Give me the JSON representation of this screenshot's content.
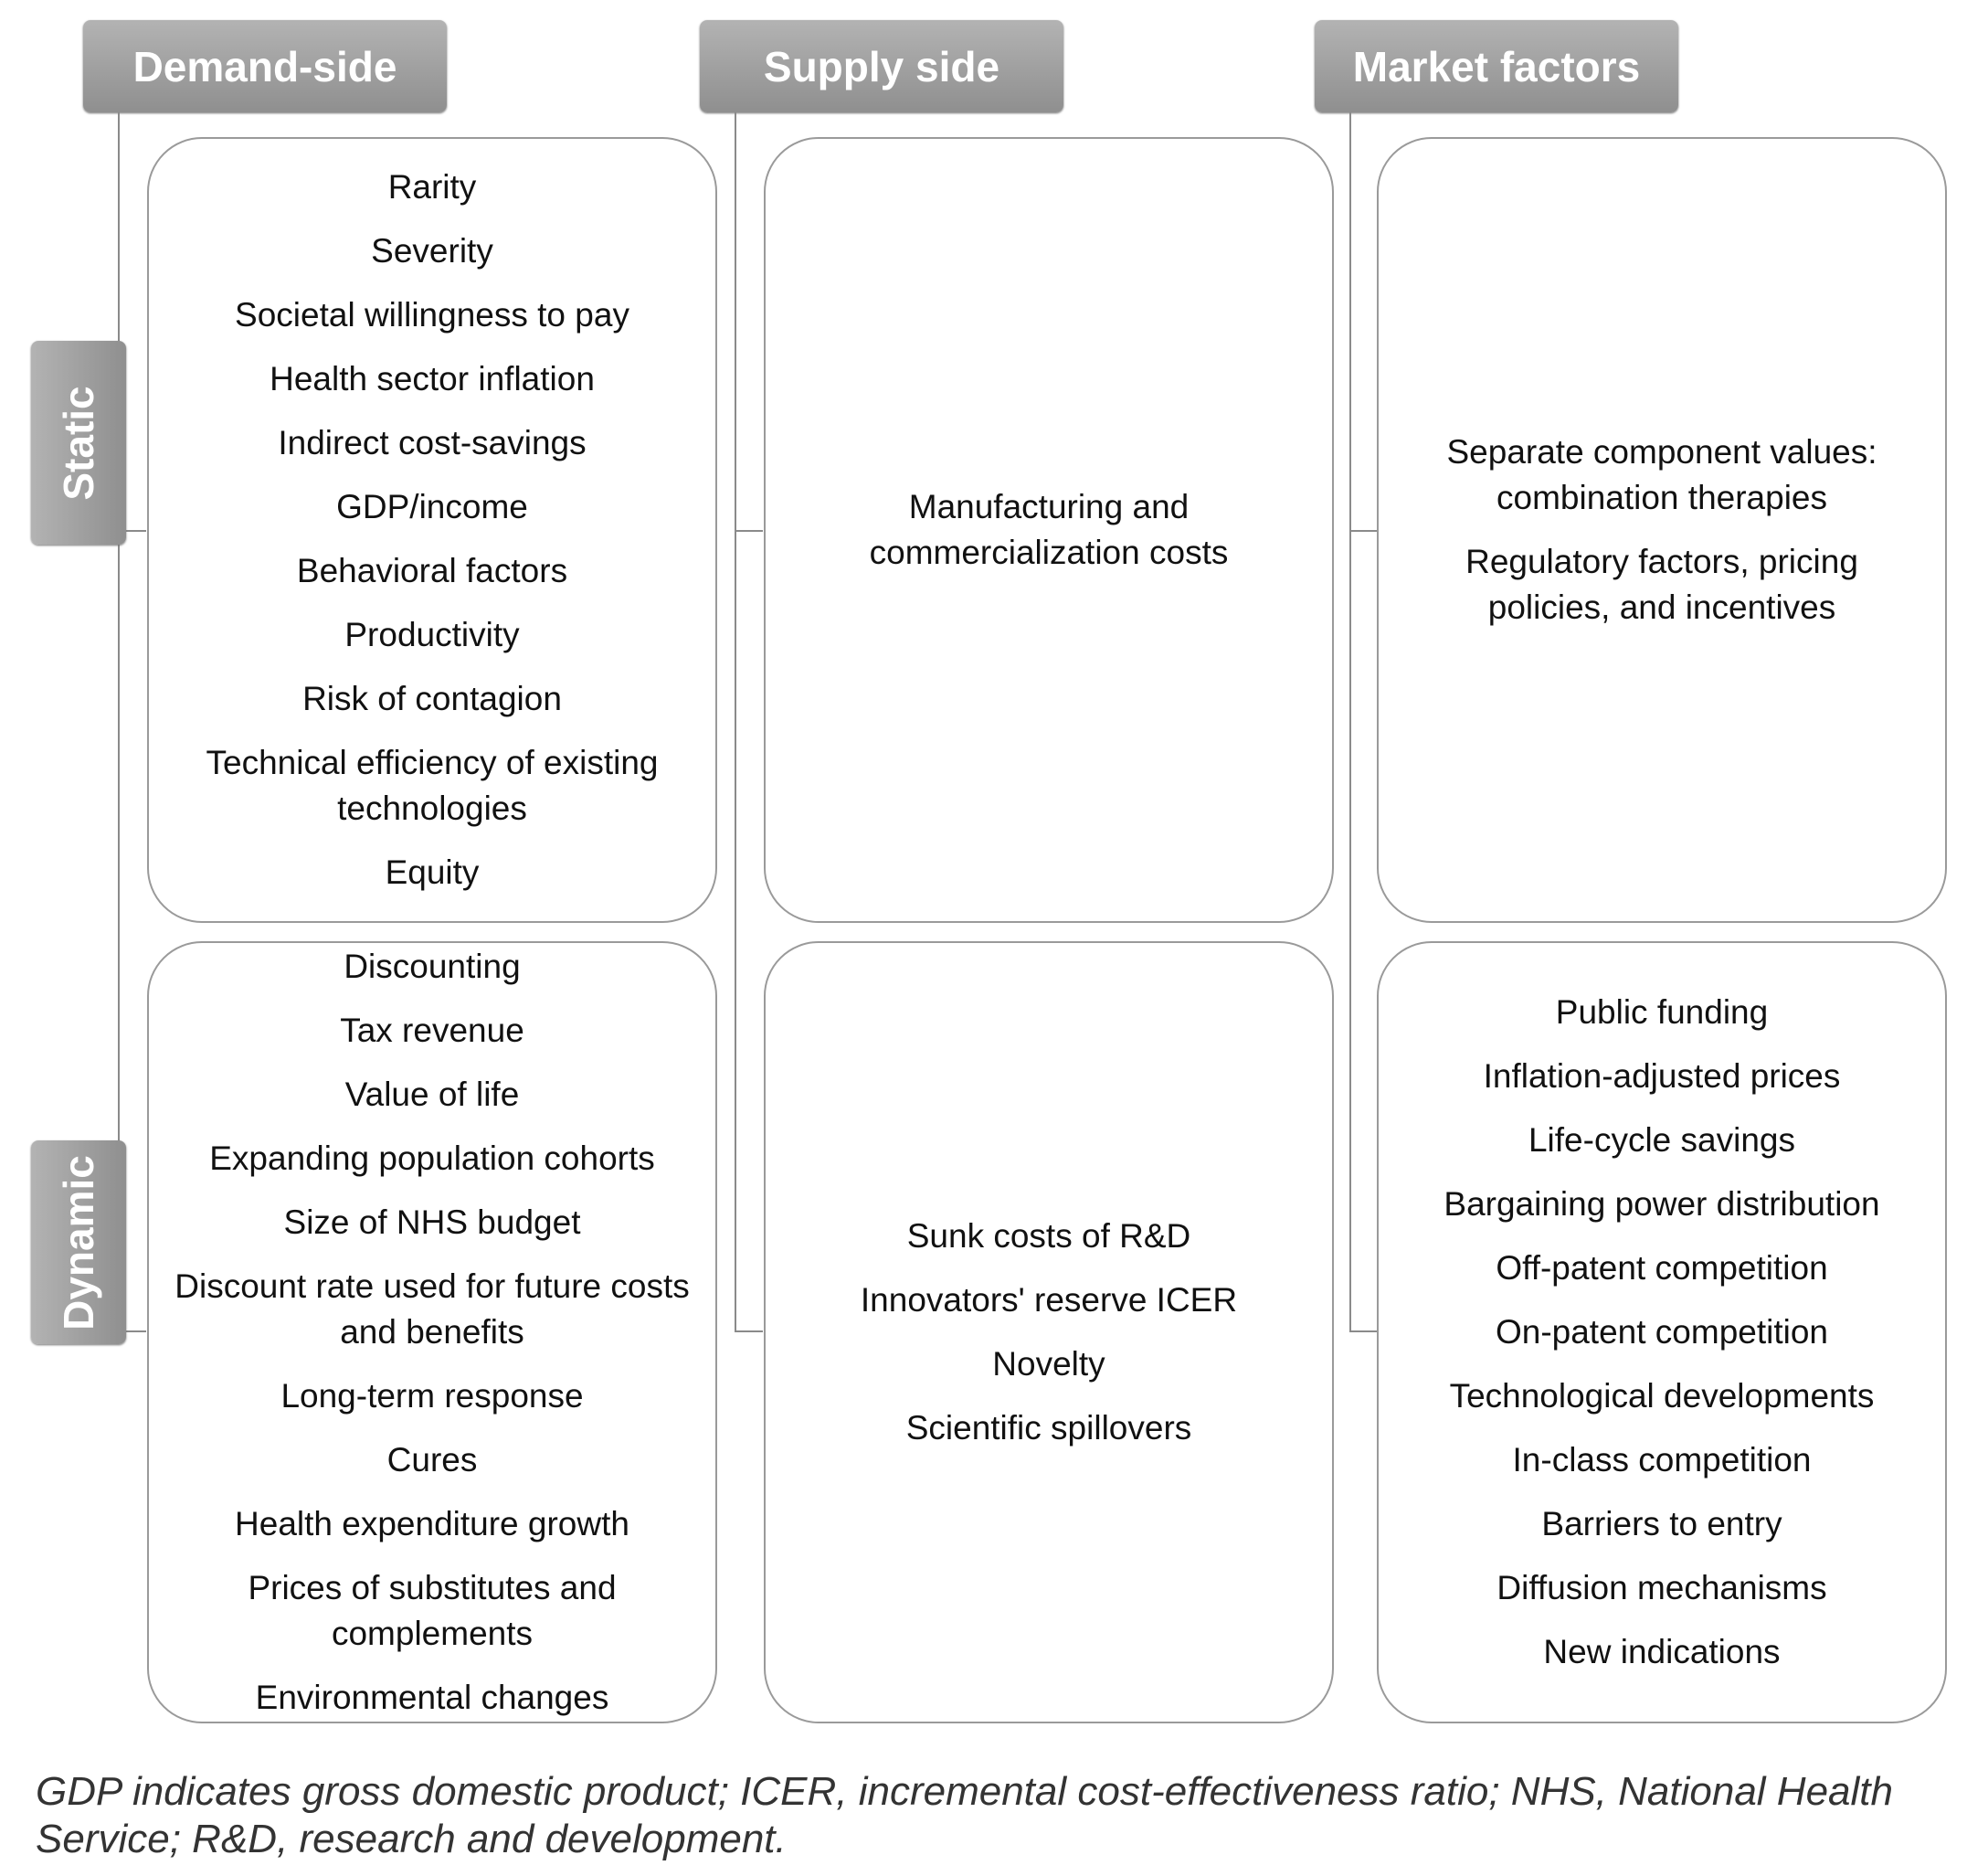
{
  "headers": {
    "demand": "Demand-side",
    "supply": "Supply side",
    "market": "Market factors"
  },
  "rows": {
    "static": "Static",
    "dynamic": "Dynamic"
  },
  "cells": {
    "demand_static": [
      "Rarity",
      "Severity",
      "Societal willingness to pay",
      "Health sector inflation",
      "Indirect cost-savings",
      "GDP/income",
      "Behavioral factors",
      "Productivity",
      "Risk of contagion",
      "Technical efficiency of existing technologies",
      "Equity"
    ],
    "supply_static": [
      "Manufacturing and commercialization costs"
    ],
    "market_static": [
      "Separate component values: combination therapies",
      "Regulatory factors, pricing policies, and incentives"
    ],
    "demand_dynamic": [
      "Discounting",
      "Tax revenue",
      "Value of life",
      "Expanding population cohorts",
      "Size of NHS budget",
      "Discount rate used for future costs and benefits",
      "Long-term response",
      "Cures",
      "Health expenditure growth",
      "Prices of substitutes and complements",
      "Environmental changes"
    ],
    "supply_dynamic": [
      "Sunk costs of R&D",
      "Innovators' reserve ICER",
      "Novelty",
      "Scientific spillovers"
    ],
    "market_dynamic": [
      "Public funding",
      "Inflation-adjusted prices",
      "Life-cycle savings",
      "Bargaining power distribution",
      "Off-patent competition",
      "On-patent competition",
      "Technological developments",
      "In-class competition",
      "Barriers to entry",
      "Diffusion mechanisms",
      "New indications"
    ]
  },
  "caption": "GDP indicates gross domestic product; ICER, incremental cost-effectiveness ratio; NHS, National Health Service; R&D, research and development."
}
